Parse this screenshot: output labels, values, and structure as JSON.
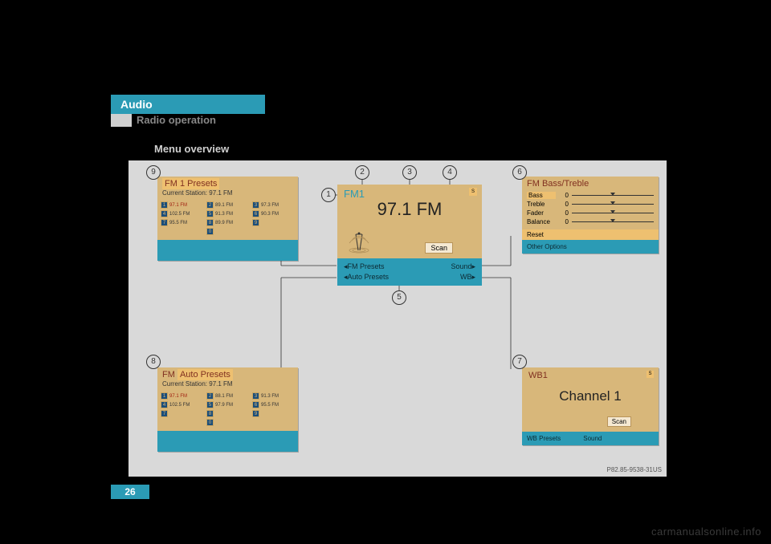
{
  "section_label": "Audio",
  "subheading": "Radio operation",
  "menu_overview_label": "Menu overview",
  "page_number": "26",
  "image_ref": "P82.85-9538-31US",
  "watermark": "carmanualsonline.info",
  "figure": {
    "background": "#d9d9d9",
    "accent": "#2b9bb5",
    "tan": "#d8b77a",
    "highlight": "#eec070"
  },
  "callouts": {
    "c1": "1",
    "c2": "2",
    "c3": "3",
    "c4": "4",
    "c5": "5",
    "c6": "6",
    "c7": "7",
    "c8": "8",
    "c9": "9"
  },
  "main": {
    "band": "FM1",
    "frequency": "97.1 FM",
    "signal_badge": "S",
    "scan_label": "Scan",
    "menu": {
      "fm_presets": "FM Presets",
      "auto_presets": "Auto Presets",
      "sound": "Sound",
      "wb": "WB"
    }
  },
  "fm1_presets": {
    "title": "FM 1 Presets",
    "current_label": "Current Station:  97.1 FM",
    "slots": [
      {
        "n": "1",
        "f": "97.1 FM",
        "sel": true
      },
      {
        "n": "2",
        "f": "89.1 FM"
      },
      {
        "n": "3",
        "f": "97.3 FM"
      },
      {
        "n": "4",
        "f": "102.5 FM"
      },
      {
        "n": "5",
        "f": "91.3 FM"
      },
      {
        "n": "6",
        "f": "90.3 FM"
      },
      {
        "n": "7",
        "f": "95.5 FM"
      },
      {
        "n": "8",
        "f": "89.9 FM"
      },
      {
        "n": "9",
        "f": ""
      },
      {
        "n": "",
        "f": ""
      },
      {
        "n": "0",
        "f": ""
      },
      {
        "n": "",
        "f": ""
      }
    ]
  },
  "fm_auto_presets": {
    "title_a": "FM ",
    "title_b": "Auto Presets",
    "current_label": "Current Station:  97.1 FM",
    "slots": [
      {
        "n": "1",
        "f": "97.1 FM",
        "sel": true
      },
      {
        "n": "2",
        "f": "88.1 FM"
      },
      {
        "n": "3",
        "f": "91.3 FM"
      },
      {
        "n": "4",
        "f": "102.5 FM"
      },
      {
        "n": "5",
        "f": "97.9 FM"
      },
      {
        "n": "6",
        "f": "95.5 FM"
      },
      {
        "n": "7",
        "f": ""
      },
      {
        "n": "8",
        "f": ""
      },
      {
        "n": "9",
        "f": ""
      },
      {
        "n": "",
        "f": ""
      },
      {
        "n": "0",
        "f": ""
      },
      {
        "n": "",
        "f": ""
      }
    ]
  },
  "sound": {
    "title": "FM Bass/Treble",
    "rows": [
      {
        "label": "Bass",
        "value": "0",
        "hl": true
      },
      {
        "label": "Treble",
        "value": "0"
      },
      {
        "label": "Fader",
        "value": "0"
      },
      {
        "label": "Balance",
        "value": "0"
      }
    ],
    "reset": "Reset",
    "other": "Other Options"
  },
  "wb": {
    "band": "WB1",
    "signal_badge": "S",
    "channel": "Channel 1",
    "scan_label": "Scan",
    "menu_presets": "WB Presets",
    "menu_sound": "Sound"
  }
}
